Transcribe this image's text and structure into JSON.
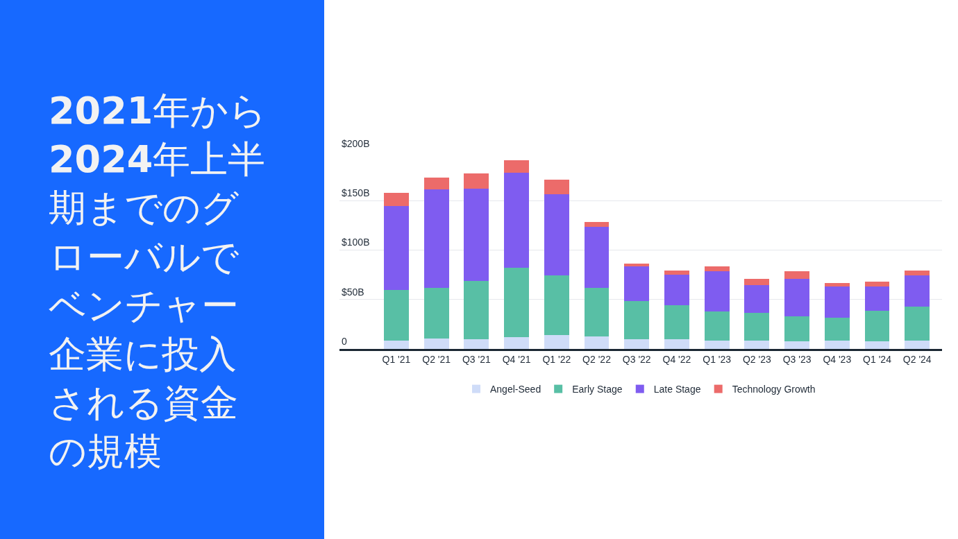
{
  "chart_data": {
    "type": "bar",
    "title": "2021年から2024年上半期までのグローバルでベンチャー企業に投入される資金の規模",
    "categories": [
      "Q1 '21",
      "Q2 '21",
      "Q3 '21",
      "Q4 '21",
      "Q1 '22",
      "Q2 '22",
      "Q3 '22",
      "Q4 '22",
      "Q1 '23",
      "Q2 '23",
      "Q3 '23",
      "Q4 '23",
      "Q1 '24",
      "Q2 '24"
    ],
    "stacked": true,
    "series": [
      {
        "name": "Angel-Seed",
        "color": "#cfdcf8",
        "values": [
          8.7,
          10.3,
          9.6,
          12.0,
          14.3,
          12.7,
          9.6,
          9.6,
          8.5,
          8.5,
          7.7,
          8.5,
          7.7,
          8.5
        ]
      },
      {
        "name": "Early Stage",
        "color": "#58bfa5",
        "values": [
          50.9,
          51.7,
          58.9,
          70.4,
          60.1,
          49.3,
          38.8,
          34.8,
          29.3,
          28.3,
          25.2,
          23.2,
          30.8,
          34.2
        ]
      },
      {
        "name": "Late Stage",
        "color": "#7f5cf0",
        "values": [
          85.0,
          99.5,
          93.9,
          96.0,
          81.9,
          61.2,
          34.9,
          30.5,
          40.6,
          28.0,
          37.8,
          31.7,
          24.9,
          31.7
        ]
      },
      {
        "name": "Technology Growth",
        "color": "#ec6b6a",
        "values": [
          13.4,
          11.7,
          15.1,
          12.6,
          15.1,
          5.0,
          2.9,
          4.2,
          5.2,
          6.1,
          7.7,
          3.0,
          4.7,
          4.7
        ]
      }
    ],
    "ylim": [
      0,
      200
    ],
    "yticks": [
      0,
      {
        "value": 50,
        "label": "$50B"
      },
      {
        "value": 100,
        "label": "$100B"
      },
      {
        "value": 150,
        "label": "$150B"
      },
      {
        "value": 200,
        "label": "$200B"
      }
    ],
    "grid": "y",
    "legend": "bottom"
  }
}
